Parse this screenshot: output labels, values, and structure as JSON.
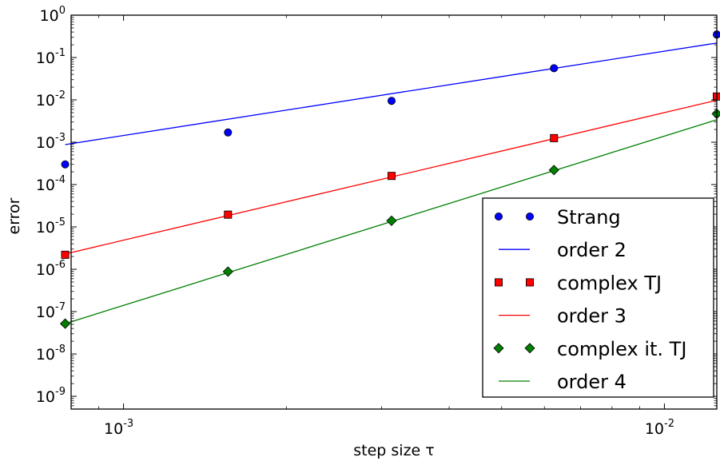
{
  "chart_data": {
    "type": "scatter",
    "xscale": "log",
    "yscale": "log",
    "xlabel": "step size τ",
    "ylabel": "error",
    "xlim": [
      0.0008,
      0.0125
    ],
    "ylim": [
      5e-10,
      1
    ],
    "x_ticks": [
      {
        "value": 0.001,
        "base": "10",
        "exp": "-3"
      },
      {
        "value": 0.01,
        "base": "10",
        "exp": "-2"
      }
    ],
    "y_ticks": [
      {
        "value": 1,
        "base": "10",
        "exp": "0"
      },
      {
        "value": 0.1,
        "base": "10",
        "exp": "-1"
      },
      {
        "value": 0.01,
        "base": "10",
        "exp": "-2"
      },
      {
        "value": 0.001,
        "base": "10",
        "exp": "-3"
      },
      {
        "value": 0.0001,
        "base": "10",
        "exp": "-4"
      },
      {
        "value": 1e-05,
        "base": "10",
        "exp": "-5"
      },
      {
        "value": 1e-06,
        "base": "10",
        "exp": "-6"
      },
      {
        "value": 1e-07,
        "base": "10",
        "exp": "-7"
      },
      {
        "value": 1e-08,
        "base": "10",
        "exp": "-8"
      },
      {
        "value": 1e-09,
        "base": "10",
        "exp": "-9"
      }
    ],
    "legend_position": "bottom-right",
    "series": [
      {
        "name": "Strang",
        "kind": "markers",
        "marker": "circle",
        "color": "#0000ff",
        "x": [
          0.00078,
          0.00156,
          0.00313,
          0.00625,
          0.0125
        ],
        "y": [
          0.0003,
          0.0017,
          0.0095,
          0.056,
          0.35
        ]
      },
      {
        "name": "order 2",
        "kind": "line",
        "color": "#0000ff",
        "x": [
          0.00078,
          0.0125
        ],
        "y": [
          0.00088,
          0.22
        ]
      },
      {
        "name": "complex TJ",
        "kind": "markers",
        "marker": "square",
        "color": "#ff0000",
        "x": [
          0.00078,
          0.00156,
          0.00313,
          0.00625,
          0.0125
        ],
        "y": [
          2.2e-06,
          1.95e-05,
          0.00016,
          0.00125,
          0.012
        ]
      },
      {
        "name": "order 3",
        "kind": "line",
        "color": "#ff0000",
        "x": [
          0.00078,
          0.0125
        ],
        "y": [
          2.3e-06,
          0.0098
        ]
      },
      {
        "name": "complex it. TJ",
        "kind": "markers",
        "marker": "diamond",
        "color": "#007f00",
        "x": [
          0.00078,
          0.00156,
          0.00313,
          0.00625,
          0.0125
        ],
        "y": [
          5.2e-08,
          8.8e-07,
          1.4e-05,
          0.00022,
          0.0047
        ]
      },
      {
        "name": "order 4",
        "kind": "line",
        "color": "#007f00",
        "x": [
          0.00078,
          0.0125
        ],
        "y": [
          5.2e-08,
          0.0034
        ]
      }
    ]
  }
}
